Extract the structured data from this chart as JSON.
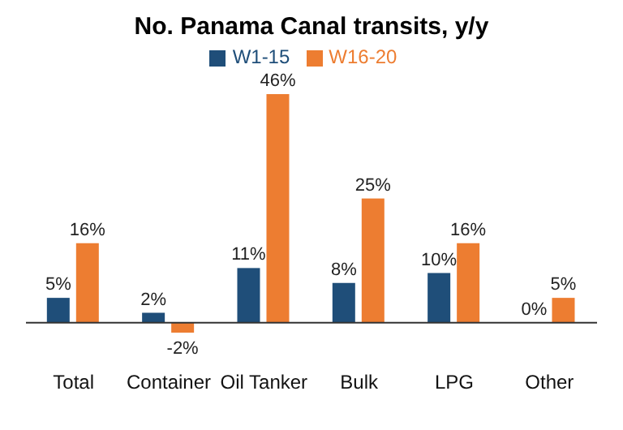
{
  "chart_data": {
    "type": "bar",
    "title": "No. Panama Canal transits, y/y",
    "categories": [
      "Total",
      "Container",
      "Oil Tanker",
      "Bulk",
      "LPG",
      "Other"
    ],
    "series": [
      {
        "name": "W1-15",
        "color": "#1f4e79",
        "values": [
          5,
          2,
          11,
          8,
          10,
          0
        ],
        "value_labels": [
          "5%",
          "2%",
          "11%",
          "8%",
          "10%",
          "0%"
        ]
      },
      {
        "name": "W16-20",
        "color": "#ed7d31",
        "values": [
          16,
          -2,
          46,
          25,
          16,
          5
        ],
        "value_labels": [
          "16%",
          "-2%",
          "46%",
          "25%",
          "16%",
          "5%"
        ]
      }
    ],
    "legend": "top",
    "grid": false
  }
}
